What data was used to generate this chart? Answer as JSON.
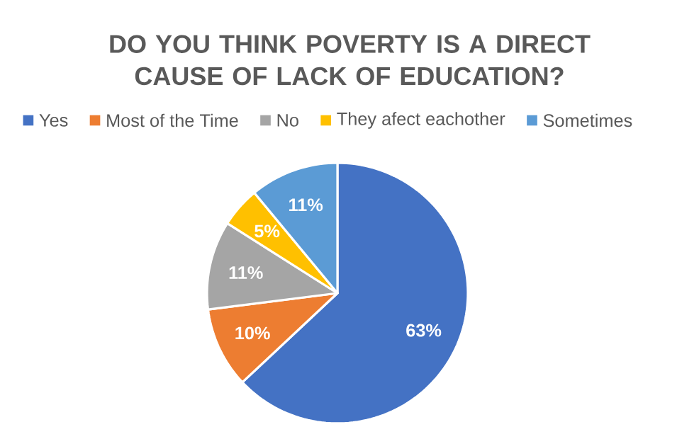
{
  "chart_data": {
    "type": "pie",
    "title": "DO YOU THINK POVERTY IS A DIRECT CAUSE OF LACK OF EDUCATION?",
    "categories": [
      "Yes",
      "Most of the Time",
      "No",
      "They afect eachother",
      "Sometimes"
    ],
    "values": [
      63,
      10,
      11,
      5,
      11
    ],
    "colors": [
      "#4472c4",
      "#ed7d31",
      "#a5a5a5",
      "#ffc000",
      "#5b9bd5"
    ],
    "value_labels": [
      "63%",
      "10%",
      "11%",
      "5%",
      "11%"
    ],
    "legend": "top"
  }
}
